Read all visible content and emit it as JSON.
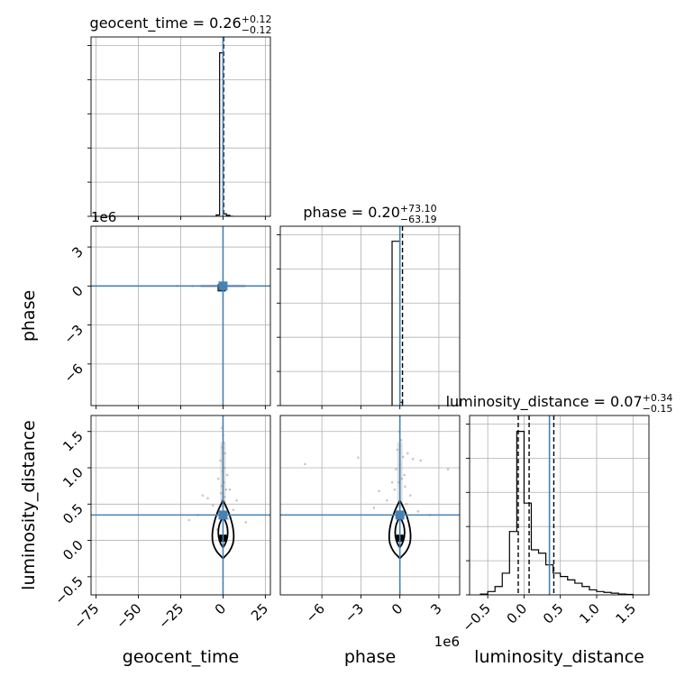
{
  "chart_data": {
    "type": "scatter",
    "subtype": "corner-plot",
    "parameters": [
      {
        "name": "geocent_time",
        "axis_label": "geocent_time",
        "title_prefix": "geocent_time = 0.26",
        "title_plus": "+0.12",
        "title_minus": "−0.12",
        "median": 0.26,
        "err_plus": 0.12,
        "err_minus": 0.12,
        "truth": 0.0,
        "range": [
          -78,
          28
        ],
        "ticks": [
          -75,
          -50,
          -25,
          0,
          25
        ],
        "tick_labels": [
          "−75",
          "−50",
          "−25",
          "0",
          "25"
        ],
        "offset_text": "",
        "hist_bins": [
          -4,
          -2,
          0,
          2,
          4,
          6
        ],
        "hist_counts": [
          0.008,
          0.98,
          0.015,
          0.006,
          0.0
        ]
      },
      {
        "name": "phase",
        "axis_label": "phase",
        "title_prefix": "phase = 0.20",
        "title_plus": "+73.10",
        "title_minus": "−63.19",
        "median": 0.2,
        "err_plus": 73.1,
        "err_minus": 63.19,
        "truth": 0.0,
        "range": [
          -9.2,
          4.6
        ],
        "ticks": [
          -6,
          -3,
          0,
          3
        ],
        "tick_labels": [
          "−6",
          "−3",
          "0",
          "3"
        ],
        "offset_text": "1e6",
        "hist_bins": [
          -0.6,
          0.0,
          0.2
        ],
        "hist_counts": [
          0.985,
          0.02
        ]
      },
      {
        "name": "luminosity_distance",
        "axis_label": "luminosity_distance",
        "title_prefix": "luminosity_distance = 0.07",
        "title_plus": "+0.34",
        "title_minus": "−0.15",
        "median": 0.07,
        "err_plus": 0.34,
        "err_minus": 0.15,
        "quantile_lines": [
          -0.08,
          0.07,
          0.41
        ],
        "truth": 0.35,
        "range": [
          -0.75,
          1.72
        ],
        "ticks": [
          -0.5,
          0.0,
          0.5,
          1.0,
          1.5
        ],
        "tick_labels": [
          "−0.5",
          "0.0",
          "0.5",
          "1.0",
          "1.5"
        ],
        "offset_text": "",
        "hist_bins": [
          -0.6,
          -0.5,
          -0.4,
          -0.3,
          -0.2,
          -0.1,
          0.0,
          0.1,
          0.2,
          0.3,
          0.4,
          0.5,
          0.6,
          0.7,
          0.8,
          0.9,
          1.0,
          1.1,
          1.2,
          1.3,
          1.4,
          1.5
        ],
        "hist_counts": [
          0.005,
          0.02,
          0.05,
          0.13,
          0.38,
          0.98,
          0.55,
          0.27,
          0.25,
          0.18,
          0.13,
          0.11,
          0.09,
          0.07,
          0.05,
          0.03,
          0.02,
          0.015,
          0.01,
          0.005,
          0.003
        ]
      }
    ],
    "truth_color": "#4682b4",
    "hist_color": "#000000",
    "grid": true,
    "layout": "lower-triangle 3x3",
    "scatter": {
      "time_phase": {
        "x": [
          0.1,
          0.3,
          -0.5,
          0.6,
          -0.2,
          1.0,
          0.0,
          -1.1,
          0.8,
          -0.3,
          0.4,
          -0.7,
          1.3,
          -18.0,
          -27.0
        ],
        "y": [
          0.02,
          -0.05,
          0.05,
          -0.08,
          0.1,
          -0.03,
          -0.12,
          0.0,
          0.07,
          -0.15,
          0.12,
          -0.06,
          0.03,
          0.0,
          0.01
        ]
      },
      "time_distance": {
        "x": [
          -0.5,
          0.3,
          1.2,
          -1.5,
          0.8,
          -0.2,
          2.5,
          -2.8,
          0.5,
          -0.8,
          1.8,
          -1.2,
          0.1,
          -0.4,
          1.0,
          -0.6,
          0.7,
          2.0,
          -2.0,
          -12.0,
          8.0,
          -15.0,
          4.0,
          -6.0,
          13.5,
          -20.0,
          6.0,
          -9.0,
          3.0,
          -3.5
        ],
        "y": [
          1.55,
          1.35,
          1.2,
          1.1,
          1.0,
          0.95,
          0.9,
          0.85,
          0.8,
          0.75,
          0.7,
          0.65,
          1.45,
          1.28,
          0.6,
          0.55,
          0.5,
          0.45,
          0.4,
          0.62,
          0.55,
          0.35,
          0.7,
          0.48,
          0.25,
          0.28,
          0.42,
          0.58,
          0.3,
          0.15
        ]
      },
      "phase_distance": {
        "x": [
          -0.05,
          0.1,
          -0.2,
          0.25,
          0.0,
          -0.3,
          0.35,
          0.15,
          -0.1,
          0.4,
          -0.4,
          0.6,
          1.0,
          1.6,
          -3.2,
          -7.3,
          3.7,
          -2.0,
          0.8,
          -1.0,
          0.5,
          -0.6,
          2.3,
          1.4,
          -1.6
        ],
        "y": [
          1.5,
          1.38,
          1.25,
          1.15,
          1.05,
          0.98,
          0.9,
          0.85,
          0.8,
          0.74,
          0.7,
          1.2,
          1.12,
          1.1,
          1.14,
          1.05,
          0.98,
          0.45,
          0.62,
          0.55,
          0.5,
          0.8,
          0.35,
          0.4,
          0.68
        ]
      }
    }
  }
}
